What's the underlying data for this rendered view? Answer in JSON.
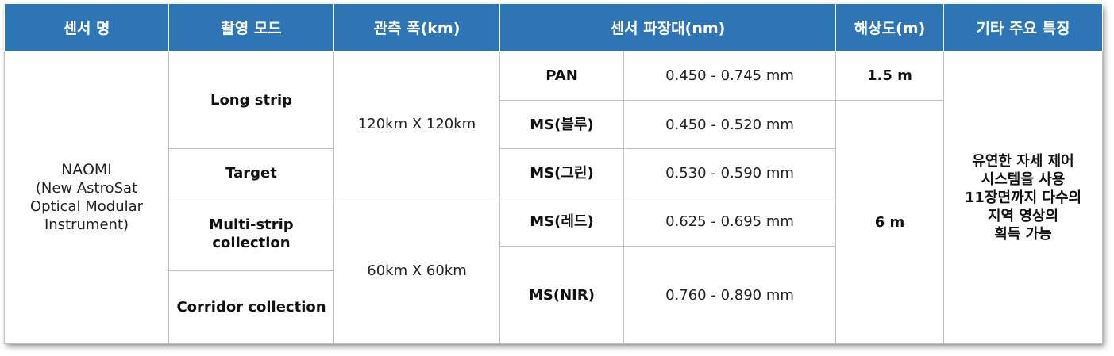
{
  "headers": [
    "센서 명",
    "촬영 모드",
    "관측 폭(km)",
    "센서 파장대(nm)",
    "해상도(m)",
    "기타 주요 특징"
  ],
  "sensor_name": [
    "NAOMI",
    "(New AstroSat",
    "Optical Modular",
    "Instrument)"
  ],
  "modes": [
    "Long strip",
    "Target",
    "Multi-strip",
    "collection",
    "Corridor collection"
  ],
  "swaths": [
    "120km X 120km",
    "60km X 60km"
  ],
  "bands": [
    {
      "name": "PAN",
      "range": "0.450 - 0.745 mm"
    },
    {
      "name": "MS(블루)",
      "range": "0.450 - 0.520 mm"
    },
    {
      "name": "MS(그린)",
      "range": "0.530 - 0.590 mm"
    },
    {
      "name": "MS(레드)",
      "range": "0.625 - 0.695 mm"
    },
    {
      "name": "MS(NIR)",
      "range": "0.760 - 0.890 mm"
    }
  ],
  "resolutions": [
    "1.5 m",
    "6 m"
  ],
  "features": [
    "유연한 자세 제어",
    "시스템을 사용",
    "11장면까지 다수의",
    "지역 영상의",
    "획득 가능"
  ]
}
